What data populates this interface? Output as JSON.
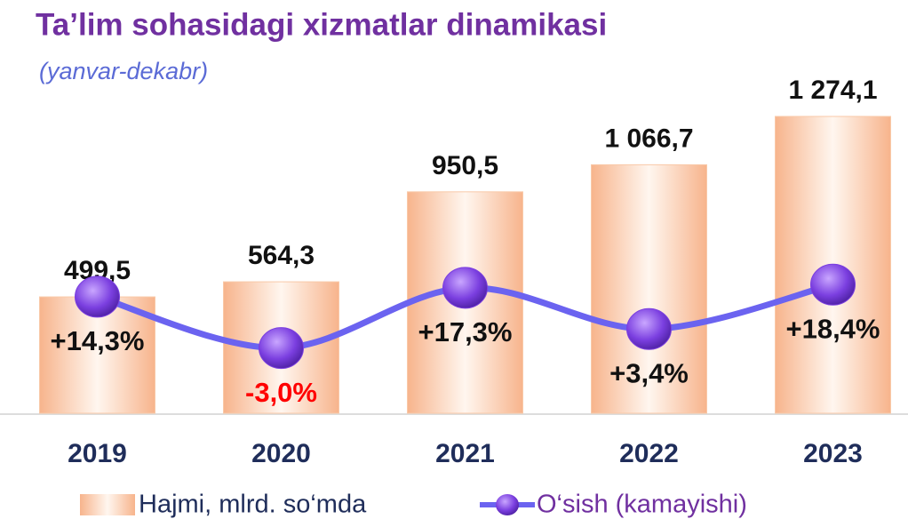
{
  "chart_data": {
    "type": "bar-line",
    "title": "Ta’lim sohasidagi xizmatlar dinamikasi",
    "subtitle": "(yanvar-dekabr)",
    "categories": [
      "2019",
      "2020",
      "2021",
      "2022",
      "2023"
    ],
    "ylim": [
      0,
      1400
    ],
    "y2lim": [
      -25,
      85
    ],
    "series": [
      {
        "name": "Hajmi, mlrd. so‘mda",
        "type": "bar",
        "color": "#f9c9a8",
        "values": [
          499.5,
          564.3,
          950.5,
          1066.7,
          1274.1
        ],
        "value_labels": [
          "499,5",
          "564,3",
          "950,5",
          "1 066,7",
          "1 274,1"
        ]
      },
      {
        "name": "O‘sish (kamayishi)",
        "type": "line",
        "axis": "y2",
        "color": "#6b63f0",
        "marker_color": "#7b3fe0",
        "values": [
          14.3,
          -3.0,
          17.3,
          3.4,
          18.4
        ],
        "value_labels": [
          "+14,3%",
          "-3,0%",
          "+17,3%",
          "+3,4%",
          "+18,4%"
        ],
        "value_label_colors": [
          "#111111",
          "#ff0000",
          "#111111",
          "#111111",
          "#111111"
        ]
      }
    ]
  }
}
